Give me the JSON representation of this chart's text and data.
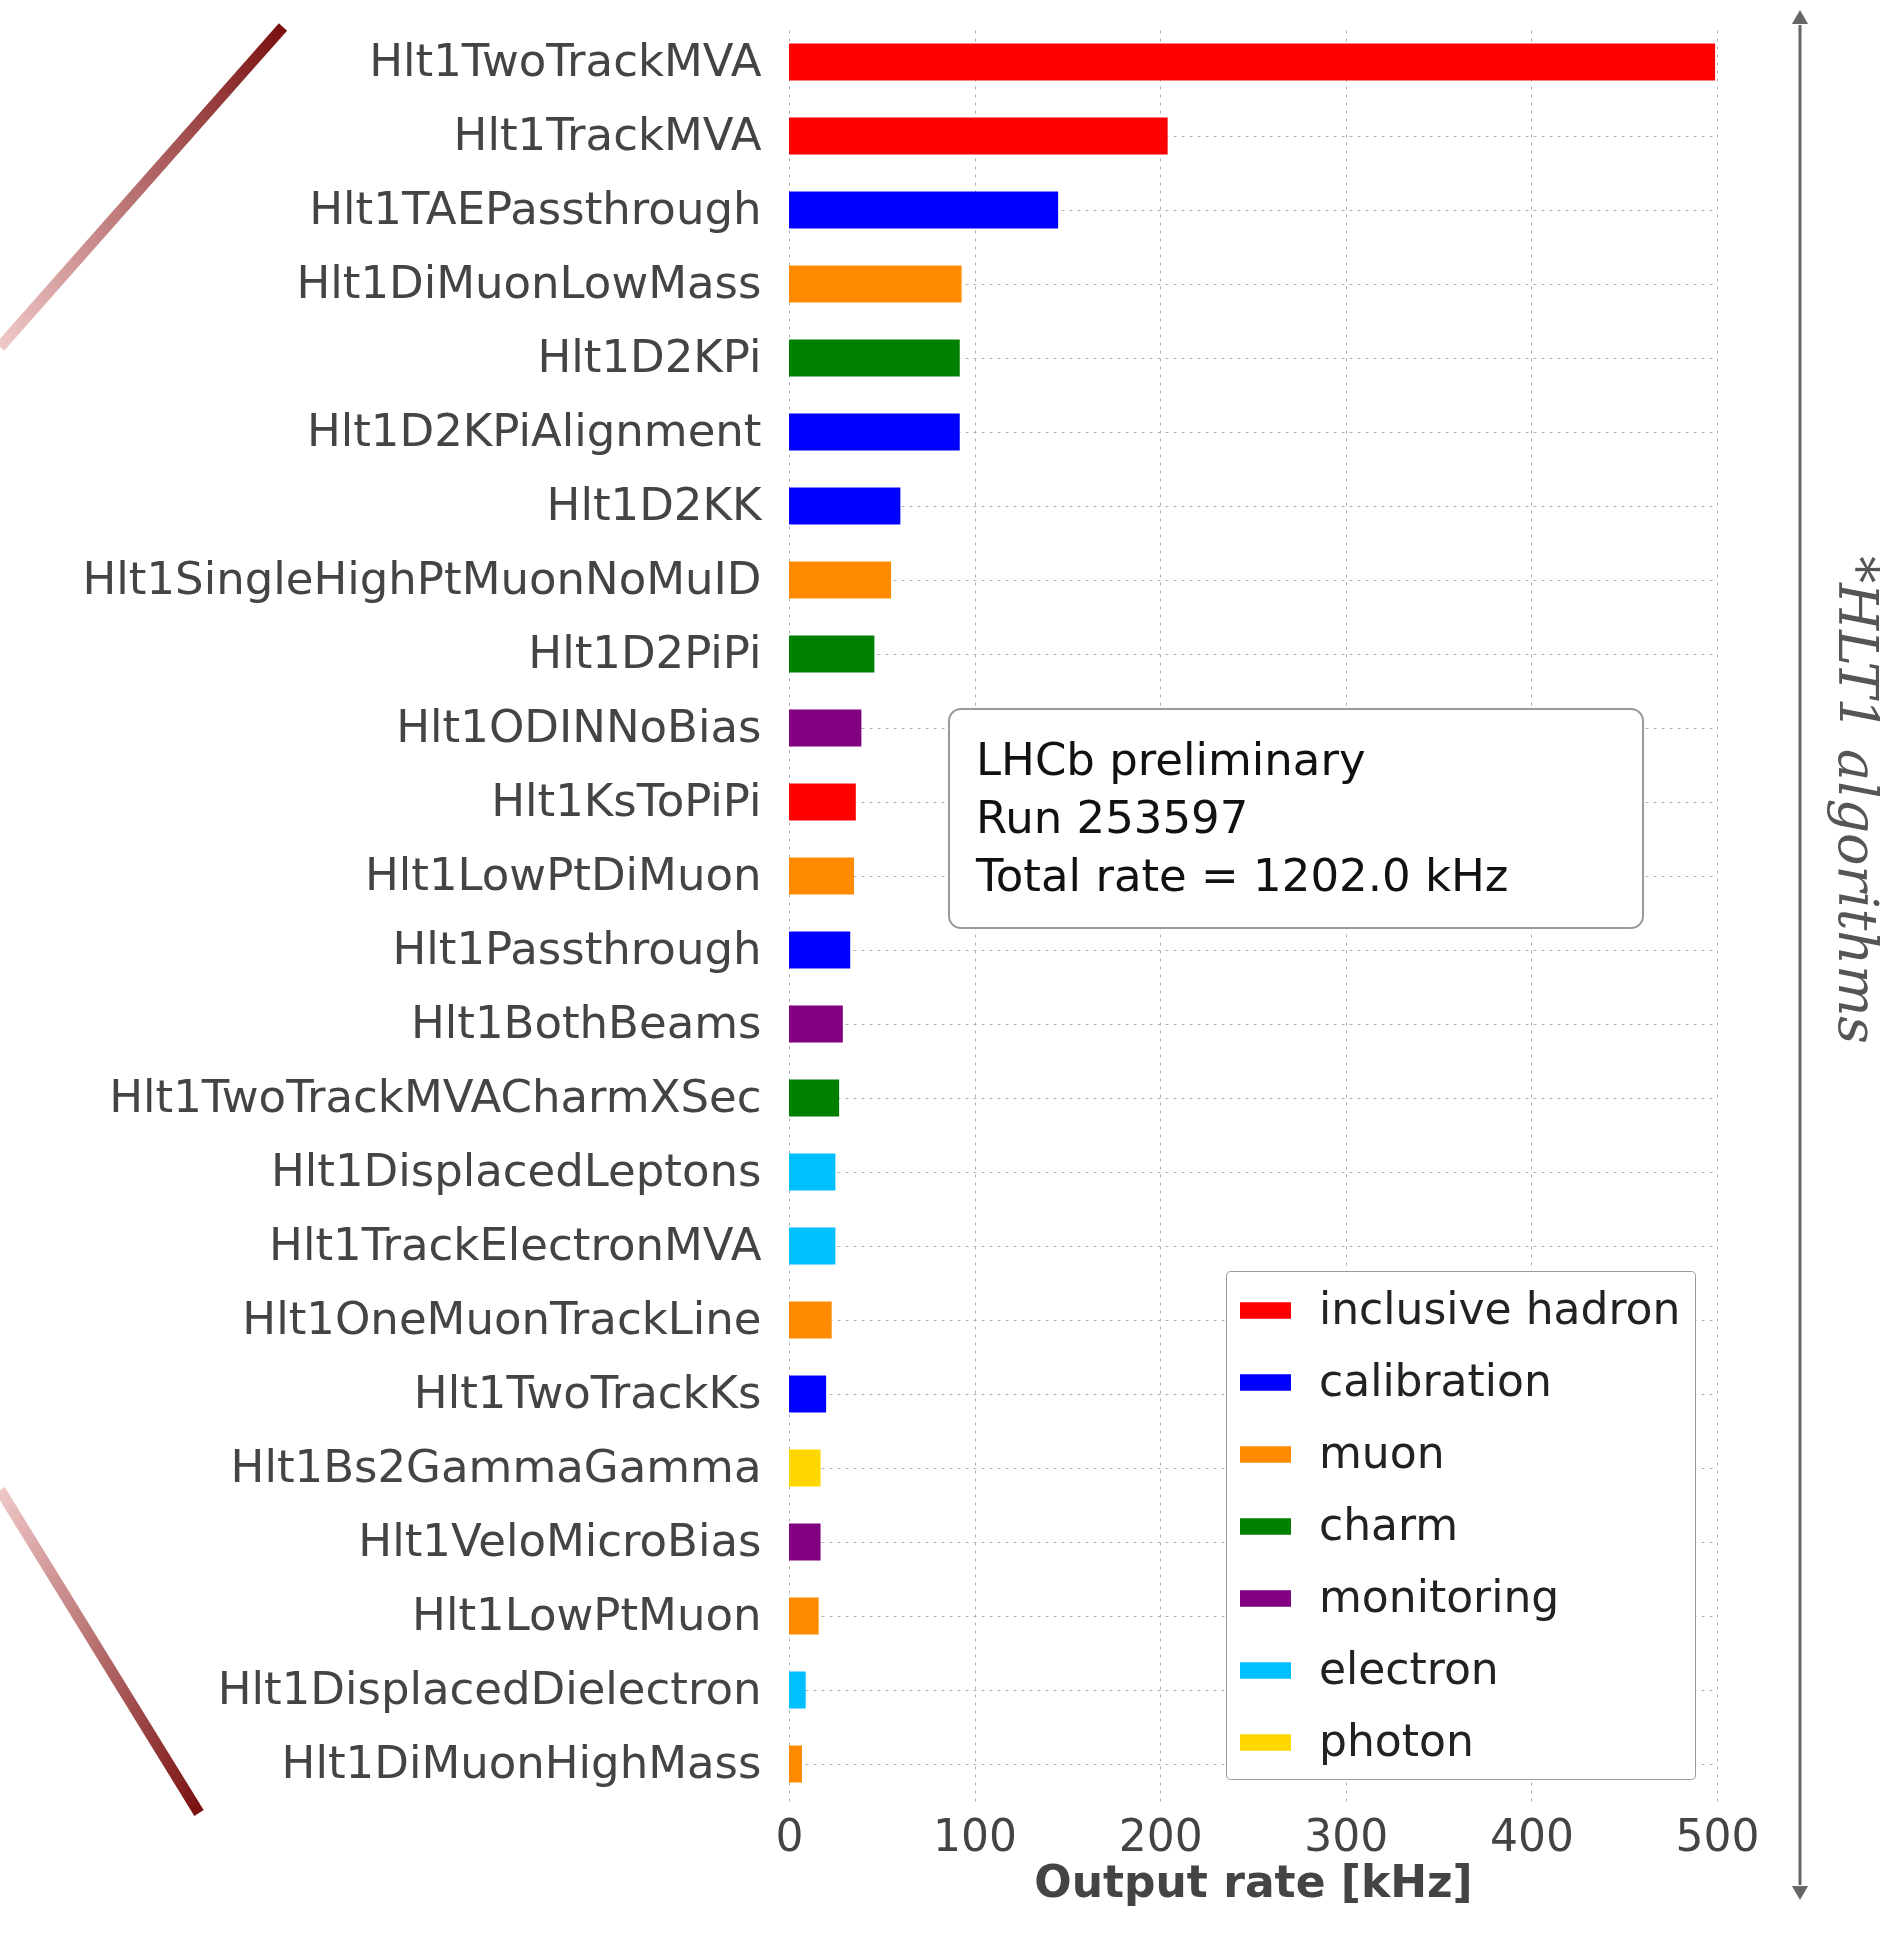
{
  "chart_data": {
    "type": "bar",
    "orientation": "horizontal",
    "xlabel": "Output rate [kHz]",
    "categories": [
      "Hlt1TwoTrackMVA",
      "Hlt1TrackMVA",
      "Hlt1TAEPassthrough",
      "Hlt1DiMuonLowMass",
      "Hlt1D2KPi",
      "Hlt1D2KPiAlignment",
      "Hlt1D2KK",
      "Hlt1SingleHighPtMuonNoMuID",
      "Hlt1D2PiPi",
      "Hlt1ODINNoBias",
      "Hlt1KsToPiPi",
      "Hlt1LowPtDiMuon",
      "Hlt1Passthrough",
      "Hlt1BothBeams",
      "Hlt1TwoTrackMVACharmXSec",
      "Hlt1DisplacedLeptons",
      "Hlt1TrackElectronMVA",
      "Hlt1OneMuonTrackLine",
      "Hlt1TwoTrackKs",
      "Hlt1Bs2GammaGamma",
      "Hlt1VeloMicroBias",
      "Hlt1LowPtMuon",
      "Hlt1DisplacedDielectron",
      "Hlt1DiMuonHighMass"
    ],
    "series": [
      {
        "name": "inclusive hadron",
        "color": "#ff0000",
        "values": [
          499,
          204,
          null,
          null,
          null,
          null,
          null,
          null,
          null,
          null,
          36,
          null,
          null,
          null,
          null,
          null,
          null,
          null,
          null,
          null,
          null,
          null,
          null,
          null
        ]
      },
      {
        "name": "calibration",
        "color": "#0000ff",
        "values": [
          null,
          null,
          145,
          null,
          null,
          92,
          60,
          null,
          null,
          null,
          null,
          null,
          33,
          null,
          null,
          null,
          null,
          null,
          20,
          null,
          null,
          null,
          null,
          null
        ]
      },
      {
        "name": "muon",
        "color": "#ff8c00",
        "values": [
          null,
          null,
          null,
          93,
          null,
          null,
          null,
          55,
          null,
          null,
          null,
          35,
          null,
          null,
          null,
          null,
          null,
          23,
          null,
          null,
          null,
          16,
          null,
          7
        ]
      },
      {
        "name": "charm",
        "color": "#008000",
        "values": [
          null,
          null,
          null,
          null,
          92,
          null,
          null,
          null,
          46,
          null,
          null,
          null,
          null,
          null,
          27,
          null,
          null,
          null,
          null,
          null,
          null,
          null,
          null,
          null
        ]
      },
      {
        "name": "monitoring",
        "color": "#800080",
        "values": [
          null,
          null,
          null,
          null,
          null,
          null,
          null,
          null,
          null,
          39,
          null,
          null,
          null,
          29,
          null,
          null,
          null,
          null,
          null,
          null,
          17,
          null,
          null,
          null
        ]
      },
      {
        "name": "electron",
        "color": "#00bfff",
        "values": [
          null,
          null,
          null,
          null,
          null,
          null,
          null,
          null,
          null,
          null,
          null,
          null,
          null,
          null,
          null,
          25,
          25,
          null,
          null,
          null,
          null,
          null,
          9,
          null
        ]
      },
      {
        "name": "photon",
        "color": "#ffd700",
        "values": [
          null,
          null,
          null,
          null,
          null,
          null,
          null,
          null,
          null,
          null,
          null,
          null,
          null,
          null,
          null,
          null,
          null,
          null,
          null,
          17,
          null,
          null,
          null,
          null
        ]
      }
    ],
    "xlim": [
      0,
      500
    ],
    "xticks": [
      0,
      100,
      200,
      300,
      400,
      500
    ],
    "grid": true,
    "legend": "bottom right",
    "annotations": [
      "LHCb preliminary",
      "Run 253597",
      "Total rate = 1202.0 kHz",
      "*HLT1 algorithms"
    ]
  }
}
